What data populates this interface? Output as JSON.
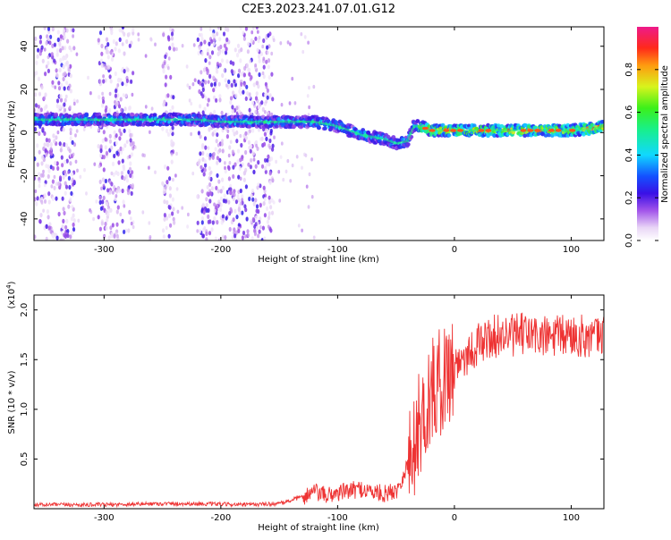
{
  "figure_title": "C2E3.2023.241.07.01.G12",
  "chart_data": [
    {
      "type": "heatmap",
      "title": "C2E3.2023.241.07.01.G12",
      "xlabel": "Height of straight line (km)",
      "ylabel": "Frequency (Hz)",
      "xlim": [
        -360,
        128
      ],
      "ylim": [
        -50,
        49
      ],
      "x_ticks": [
        -300,
        -200,
        -100,
        0,
        100
      ],
      "x_tick_labels": [
        "-300",
        "-200",
        "-100",
        "0",
        "100"
      ],
      "y_ticks": [
        -40,
        -20,
        0,
        20,
        40
      ],
      "y_tick_labels": [
        "-40",
        "-20",
        "0",
        "20",
        "40"
      ],
      "colorbar": {
        "label": "Normalized spectral amplitude",
        "range": [
          0,
          1
        ],
        "ticks": [
          0.0,
          0.2,
          0.4,
          0.6,
          0.8
        ],
        "tick_labels": [
          "0.0",
          "0.2",
          "0.4",
          "0.6",
          "0.8"
        ],
        "colormap": "rainbow-white-purple-blue-cyan-green-yellow-red-magenta"
      },
      "main_frequency_trace": {
        "x": [
          -360,
          -340,
          -320,
          -300,
          -280,
          -260,
          -240,
          -220,
          -200,
          -180,
          -160,
          -140,
          -120,
          -100,
          -90,
          -80,
          -70,
          -60,
          -50,
          -40,
          -35,
          -30,
          -20,
          0,
          20,
          40,
          60,
          80,
          100,
          120,
          128
        ],
        "y": [
          6,
          6,
          6,
          6,
          6,
          6,
          6,
          6,
          5,
          5,
          5,
          5,
          5,
          3,
          1,
          -1,
          -2,
          -3,
          -5,
          -4,
          3,
          3,
          1,
          1,
          1,
          1,
          1,
          1,
          1,
          2,
          3
        ]
      },
      "grid": false
    },
    {
      "type": "line",
      "title": "",
      "xlabel": "Height of straight line (km)",
      "ylabel": "SNR (10 * v/v)",
      "y_scale_label": "(x10^4)",
      "xlim": [
        -360,
        128
      ],
      "ylim": [
        0,
        2.15
      ],
      "x_ticks": [
        -300,
        -200,
        -100,
        0,
        100
      ],
      "x_tick_labels": [
        "-300",
        "-200",
        "-100",
        "0",
        "100"
      ],
      "y_ticks": [
        0.5,
        1.0,
        1.5,
        2.0
      ],
      "y_tick_labels": [
        "0.5",
        "1.0",
        "1.5",
        "2.0"
      ],
      "series": [
        {
          "color": "#ee3333",
          "x": [
            -360,
            -340,
            -300,
            -260,
            -220,
            -180,
            -150,
            -130,
            -120,
            -110,
            -100,
            -90,
            -80,
            -70,
            -60,
            -50,
            -45,
            -40,
            -35,
            -30,
            -25,
            -20,
            -15,
            -10,
            -5,
            0,
            10,
            20,
            30,
            40,
            50,
            60,
            80,
            100,
            120,
            128
          ],
          "y": [
            0.04,
            0.04,
            0.04,
            0.05,
            0.05,
            0.04,
            0.05,
            0.12,
            0.17,
            0.13,
            0.16,
            0.18,
            0.2,
            0.17,
            0.15,
            0.18,
            0.3,
            0.45,
            0.62,
            0.85,
            1.0,
            1.15,
            1.25,
            1.3,
            1.4,
            1.45,
            1.55,
            1.65,
            1.72,
            1.75,
            1.74,
            1.76,
            1.72,
            1.75,
            1.72,
            1.74
          ]
        }
      ],
      "grid": false
    }
  ]
}
